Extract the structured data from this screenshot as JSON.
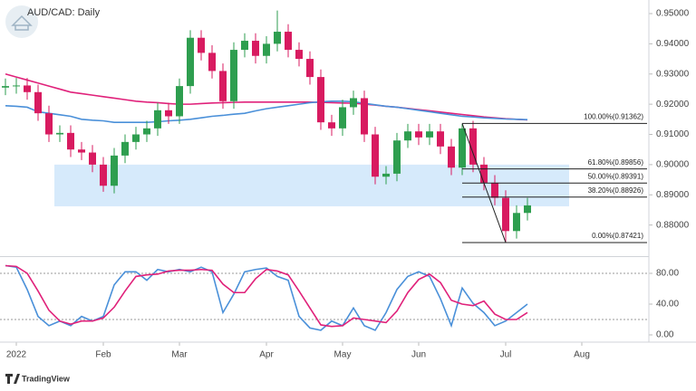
{
  "chart_data": [
    {
      "type": "candlestick",
      "title": "AUD/CAD: Daily",
      "footer": "TradingView",
      "categories": [
        null,
        "2022",
        null,
        null,
        null,
        null,
        null,
        null,
        null,
        "Feb",
        null,
        null,
        null,
        null,
        null,
        null,
        "Mar",
        null,
        null,
        null,
        null,
        null,
        null,
        null,
        "Apr",
        null,
        null,
        null,
        null,
        null,
        null,
        "May",
        null,
        null,
        null,
        null,
        null,
        null,
        "Jun",
        null,
        null,
        null,
        null,
        null,
        null,
        null,
        "Jul",
        null,
        null,
        null,
        null,
        null,
        null,
        "Aug",
        null,
        null,
        null,
        null,
        null
      ],
      "open": [
        0.9255,
        0.926,
        0.9262,
        0.924,
        0.917,
        0.91,
        0.9105,
        0.905,
        0.904,
        0.9,
        0.893,
        0.903,
        0.9075,
        0.91,
        0.912,
        0.918,
        0.916,
        0.926,
        0.942,
        0.937,
        0.931,
        0.921,
        0.938,
        0.941,
        0.936,
        0.94,
        0.944,
        0.938,
        0.935,
        0.929,
        0.914,
        0.912,
        0.919,
        0.922,
        0.91,
        0.896,
        0.897,
        0.908,
        0.911,
        0.909,
        0.911,
        0.906,
        0.899,
        0.912,
        0.9,
        0.894,
        0.889,
        0.878,
        0.884,
        null,
        null,
        null,
        null,
        null,
        null,
        null,
        null,
        null,
        null
      ],
      "high": [
        0.9285,
        0.9287,
        0.9287,
        0.9265,
        0.9195,
        0.913,
        0.913,
        0.9075,
        0.9065,
        0.9025,
        0.9055,
        0.91,
        0.9125,
        0.9145,
        0.9205,
        0.9205,
        0.9285,
        0.9445,
        0.9445,
        0.9395,
        0.9335,
        0.9405,
        0.9435,
        0.9435,
        0.9425,
        0.951,
        0.9465,
        0.9405,
        0.9375,
        0.9315,
        0.9165,
        0.9215,
        0.9245,
        0.9245,
        0.9125,
        0.8995,
        0.9105,
        0.9135,
        0.9135,
        0.9135,
        0.9135,
        0.9085,
        0.9136,
        0.9145,
        0.9025,
        0.8965,
        0.8915,
        0.8865,
        0.889,
        null,
        null,
        null,
        null,
        null,
        null,
        null,
        null,
        null,
        null
      ],
      "low": [
        0.923,
        0.9235,
        0.9215,
        0.9145,
        0.9075,
        0.9075,
        0.9025,
        0.9015,
        0.8975,
        0.891,
        0.8905,
        0.9005,
        0.905,
        0.9075,
        0.9095,
        0.9135,
        0.9135,
        0.9235,
        0.9345,
        0.9285,
        0.9185,
        0.9185,
        0.9355,
        0.9335,
        0.9335,
        0.9375,
        0.9355,
        0.9325,
        0.9265,
        0.9115,
        0.9095,
        0.9095,
        0.9165,
        0.9075,
        0.8935,
        0.8935,
        0.8945,
        0.9055,
        0.9065,
        0.9065,
        0.9035,
        0.8965,
        0.8965,
        0.8975,
        0.8915,
        0.8865,
        0.8742,
        0.8755,
        0.8815,
        null,
        null,
        null,
        null,
        null,
        null,
        null,
        null,
        null,
        null
      ],
      "close": [
        0.926,
        0.9262,
        0.924,
        0.917,
        0.91,
        0.9105,
        0.905,
        0.904,
        0.9,
        0.893,
        0.903,
        0.9075,
        0.91,
        0.912,
        0.918,
        0.916,
        0.926,
        0.942,
        0.937,
        0.931,
        0.921,
        0.938,
        0.941,
        0.936,
        0.94,
        0.944,
        0.938,
        0.935,
        0.929,
        0.914,
        0.912,
        0.919,
        0.922,
        0.91,
        0.896,
        0.897,
        0.908,
        0.911,
        0.909,
        0.911,
        0.906,
        0.899,
        0.912,
        0.9,
        0.894,
        0.889,
        0.878,
        0.884,
        0.8865,
        null,
        null,
        null,
        null,
        null,
        null,
        null,
        null,
        null,
        null
      ],
      "up_color": "#2e9e4f",
      "down_color": "#d81b60",
      "series": [
        {
          "color": "#e0217a",
          "values": [
            0.93,
            0.929,
            0.928,
            0.927,
            0.926,
            0.925,
            0.924,
            0.9235,
            0.923,
            0.9225,
            0.922,
            0.9215,
            0.921,
            0.9207,
            0.9205,
            0.9202,
            0.92,
            0.92,
            0.9202,
            0.9204,
            0.9205,
            0.9206,
            0.9207,
            0.9207,
            0.9207,
            0.9207,
            0.9207,
            0.9207,
            0.9207,
            0.9206,
            0.9205,
            0.9204,
            0.9203,
            0.92,
            0.9197,
            0.9193,
            0.919,
            0.9186,
            0.9182,
            0.9178,
            0.9174,
            0.917,
            0.9166,
            0.9162,
            0.9158,
            0.9155,
            0.9152,
            0.915,
            0.9148,
            null,
            null,
            null,
            null,
            null,
            null,
            null,
            null,
            null,
            null
          ]
        },
        {
          "color": "#4a90d9",
          "values": [
            0.9195,
            0.9193,
            0.919,
            0.9175,
            0.917,
            0.9165,
            0.916,
            0.915,
            0.9147,
            0.9145,
            0.914,
            0.914,
            0.914,
            0.914,
            0.9142,
            0.9145,
            0.9147,
            0.915,
            0.9155,
            0.916,
            0.9163,
            0.9167,
            0.917,
            0.9178,
            0.9185,
            0.919,
            0.9195,
            0.92,
            0.9205,
            0.9208,
            0.921,
            0.921,
            0.9208,
            0.9203,
            0.9198,
            0.9193,
            0.919,
            0.9185,
            0.918,
            0.9175,
            0.917,
            0.9165,
            0.916,
            0.9158,
            0.9155,
            0.9153,
            0.9151,
            0.915,
            0.9149,
            null,
            null,
            null,
            null,
            null,
            null,
            null,
            null,
            null,
            null
          ]
        }
      ],
      "support_zone": {
        "range": [
          0.8862,
          0.9
        ],
        "color": "#d6eafb"
      },
      "fibonacci": {
        "color": "#222222",
        "levels": [
          {
            "value": 0.91362,
            "label": "100.00%(0.91362)"
          },
          {
            "value": 0.89856,
            "label": "61.80%(0.89856)"
          },
          {
            "value": 0.89391,
            "label": "50.00%(0.89391)"
          },
          {
            "value": 0.88926,
            "label": "38.20%(0.88926)"
          },
          {
            "value": 0.87421,
            "label": "0.00%(0.87421)"
          }
        ]
      },
      "ylim": [
        0.87,
        0.9545
      ],
      "yticks": [
        {
          "value": 0.88,
          "label": "0.88000"
        },
        {
          "value": 0.89,
          "label": "0.89000"
        },
        {
          "value": 0.9,
          "label": "0.90000"
        },
        {
          "value": 0.91,
          "label": "0.91000"
        },
        {
          "value": 0.92,
          "label": "0.92000"
        },
        {
          "value": 0.93,
          "label": "0.93000"
        },
        {
          "value": 0.94,
          "label": "0.94000"
        },
        {
          "value": 0.95,
          "label": "0.95000"
        }
      ],
      "grid": false
    },
    {
      "type": "line",
      "series": [
        {
          "color": "#4a90d9",
          "values": [
            90,
            88,
            59,
            24,
            12,
            18,
            12,
            24,
            18,
            24,
            65,
            82,
            82,
            71,
            85,
            82,
            85,
            82,
            88,
            82,
            29,
            53,
            82,
            85,
            87,
            76,
            71,
            24,
            9,
            6,
            18,
            12,
            35,
            12,
            6,
            29,
            59,
            76,
            82,
            76,
            47,
            12,
            61,
            41,
            29,
            12,
            18,
            29,
            40,
            null,
            null,
            null,
            null,
            null,
            null,
            null,
            null,
            null,
            null
          ]
        },
        {
          "color": "#e0217a",
          "values": [
            90,
            89,
            80,
            57,
            32,
            18,
            14,
            18,
            18,
            22,
            36,
            57,
            76,
            78,
            79,
            83,
            84,
            84,
            85,
            84,
            66,
            55,
            55,
            73,
            85,
            83,
            78,
            57,
            35,
            13,
            11,
            12,
            22,
            20,
            18,
            16,
            31,
            55,
            72,
            79,
            68,
            45,
            40,
            38,
            44,
            27,
            20,
            20,
            29,
            null,
            null,
            null,
            null,
            null,
            null,
            null,
            null,
            null,
            null
          ]
        }
      ],
      "levels": [
        80,
        20
      ],
      "ylim": [
        -9.4,
        100
      ],
      "yticks": [
        {
          "value": 0,
          "label": "0.00"
        },
        {
          "value": 40,
          "label": "40.00"
        },
        {
          "value": 80,
          "label": "80.00"
        }
      ],
      "grid": false
    }
  ]
}
